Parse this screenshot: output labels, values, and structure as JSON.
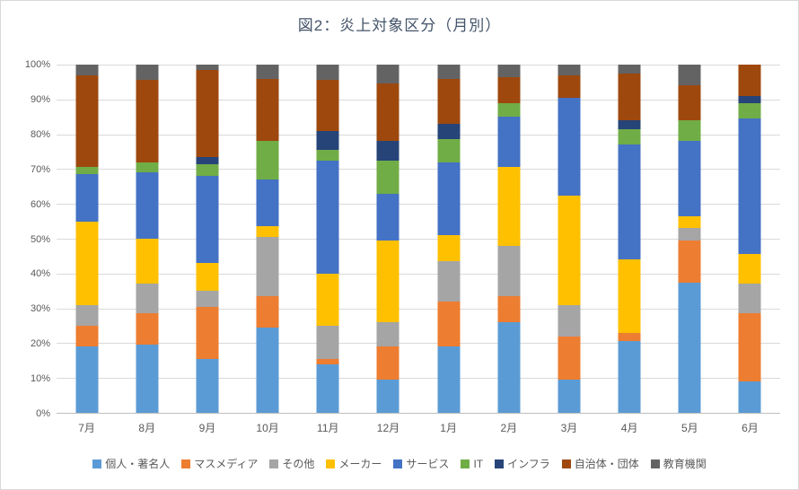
{
  "chart_data": {
    "type": "bar",
    "variant": "100%-stacked-column",
    "title": "図2：炎上対象区分（月別）",
    "categories": [
      "7月",
      "8月",
      "9月",
      "10月",
      "11月",
      "12月",
      "1月",
      "2月",
      "3月",
      "4月",
      "5月",
      "6月"
    ],
    "y_ticks": [
      "100%",
      "90%",
      "80%",
      "70%",
      "60%",
      "50%",
      "40%",
      "30%",
      "20%",
      "10%",
      "0%"
    ],
    "ylim": [
      0,
      100
    ],
    "grid": true,
    "legend_position": "bottom",
    "series": [
      {
        "name": "個人・著名人",
        "color": "#5B9BD5",
        "values": [
          19,
          19.5,
          15.5,
          24.5,
          14,
          9.5,
          19,
          26,
          9.5,
          20.5,
          37.5,
          9
        ]
      },
      {
        "name": "マスメディア",
        "color": "#ED7D31",
        "values": [
          6,
          9,
          15,
          9,
          1.5,
          9.5,
          13,
          7.5,
          12.5,
          2.5,
          12,
          19.5
        ]
      },
      {
        "name": "その他",
        "color": "#A5A5A5",
        "values": [
          6,
          8.5,
          4.5,
          17,
          9.5,
          7,
          11.5,
          14.5,
          9,
          0,
          3.5,
          8.5
        ]
      },
      {
        "name": "メーカー",
        "color": "#FFC000",
        "values": [
          24,
          13,
          8,
          3,
          15,
          23.5,
          7.5,
          22.5,
          31.5,
          21,
          3.5,
          8.5
        ]
      },
      {
        "name": "サービス",
        "color": "#4472C4",
        "values": [
          13.5,
          19,
          25,
          13.5,
          32.5,
          13.5,
          21,
          14.5,
          28,
          33,
          21.5,
          39
        ]
      },
      {
        "name": "IT",
        "color": "#70AD47",
        "values": [
          2,
          3,
          3.5,
          11,
          3,
          9.5,
          6.5,
          4,
          0,
          4.5,
          6,
          4.5
        ]
      },
      {
        "name": "インフラ",
        "color": "#264478",
        "values": [
          0,
          0,
          2,
          0,
          5.5,
          5.5,
          4.5,
          0,
          0,
          2.5,
          0,
          2
        ]
      },
      {
        "name": "自治体・団体",
        "color": "#9E480E",
        "values": [
          26.5,
          23.5,
          25,
          18,
          14.5,
          16.5,
          13,
          7.5,
          6.5,
          13.5,
          10,
          9
        ]
      },
      {
        "name": "教育機関",
        "color": "#636363",
        "values": [
          3,
          4.5,
          1.5,
          4,
          4.5,
          5.5,
          4,
          3.5,
          3,
          2.5,
          6,
          0
        ]
      }
    ],
    "colors": {
      "title": "#44546A",
      "axis_text": "#595959",
      "gridline": "#D9D9D9",
      "axis_line": "#BFBFBF"
    }
  }
}
